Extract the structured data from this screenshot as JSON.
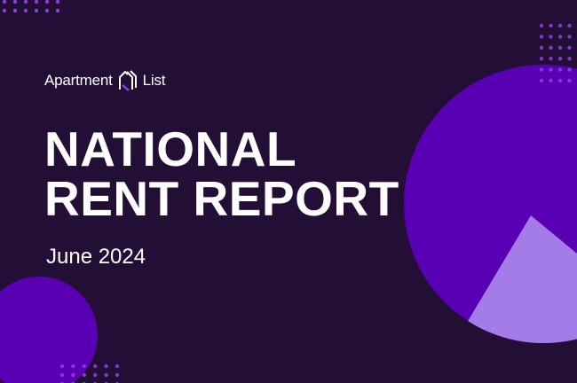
{
  "brand": {
    "name_left": "Apartment",
    "name_right": "List",
    "logo": "house-outline-icon"
  },
  "title_line1": "NATIONAL",
  "title_line2": "RENT REPORT",
  "subtitle": "June 2024",
  "colors": {
    "background": "#230f35",
    "circle": "#5a00b4",
    "wedge": "#a47ce8",
    "dots": "#8a3fd6",
    "accent": "#7b3fe4"
  }
}
